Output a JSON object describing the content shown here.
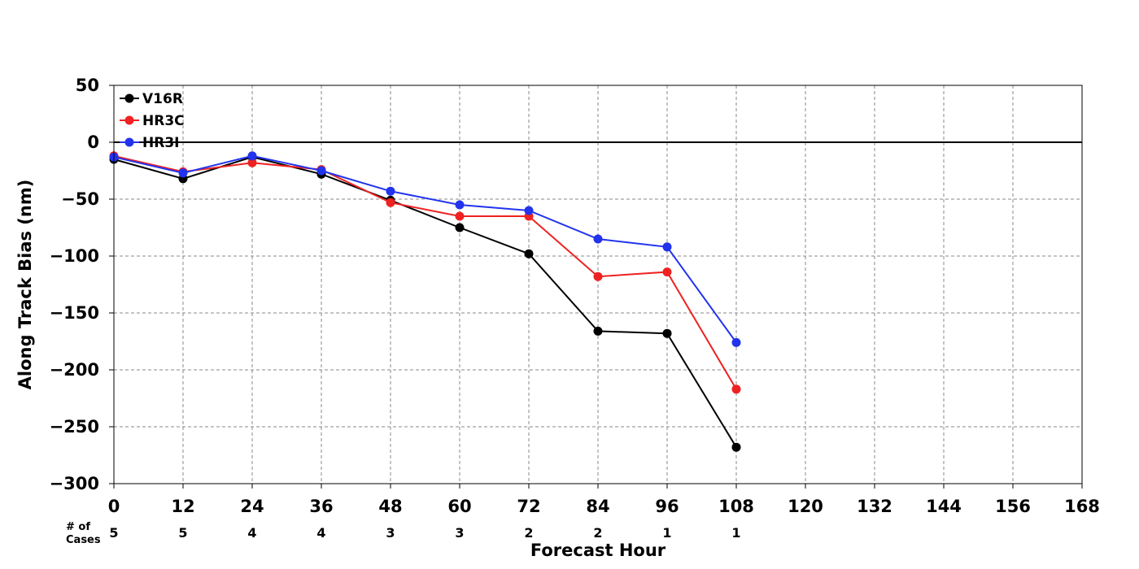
{
  "chart_data": {
    "type": "line",
    "xlabel": "Forecast Hour",
    "ylabel": "Along Track Bias (nm)",
    "xlim": [
      0,
      168
    ],
    "ylim": [
      -300,
      50
    ],
    "x_ticks": [
      0,
      12,
      24,
      36,
      48,
      60,
      72,
      84,
      96,
      108,
      120,
      132,
      144,
      156,
      168
    ],
    "y_ticks": [
      50,
      0,
      -50,
      -100,
      -150,
      -200,
      -250,
      -300
    ],
    "grid": true,
    "zero_line": true,
    "legend_position": "top-left",
    "x": [
      0,
      12,
      24,
      36,
      48,
      60,
      72,
      84,
      96,
      108
    ],
    "series": [
      {
        "name": "V16R",
        "color": "#000000",
        "values": [
          -15,
          -32,
          -13,
          -28,
          -51,
          -75,
          -98,
          -166,
          -168,
          -268
        ]
      },
      {
        "name": "HR3C",
        "color": "#ee2222",
        "values": [
          -12,
          -26,
          -18,
          -24,
          -53,
          -65,
          -65,
          -118,
          -114,
          -217
        ]
      },
      {
        "name": "HR3I",
        "color": "#2233ee",
        "values": [
          -13,
          -27,
          -12,
          -25,
          -43,
          -55,
          -60,
          -85,
          -92,
          -176
        ]
      }
    ],
    "cases": {
      "header_line1": "# of",
      "header_line2": "Cases",
      "x": [
        0,
        12,
        24,
        36,
        48,
        60,
        72,
        84,
        96,
        108
      ],
      "values": [
        "5",
        "5",
        "4",
        "4",
        "3",
        "3",
        "2",
        "2",
        "1",
        "1"
      ]
    }
  }
}
